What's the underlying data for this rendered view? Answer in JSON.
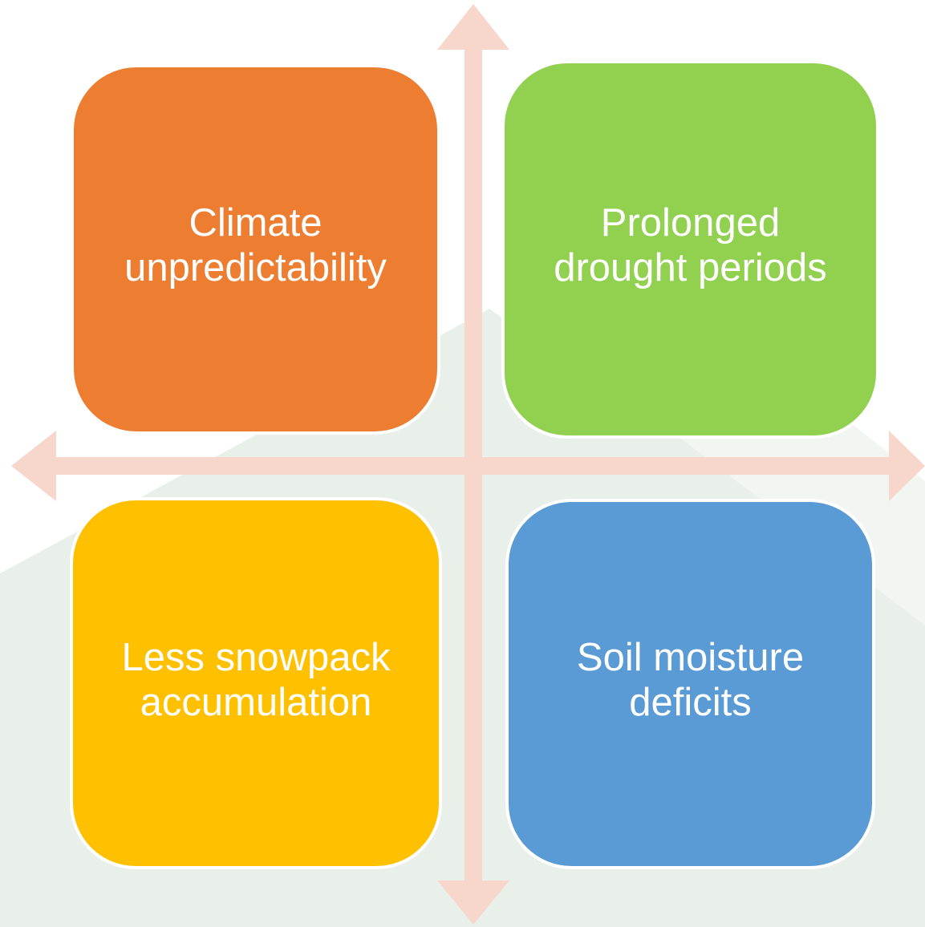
{
  "nodes": [
    {
      "lines": [
        "Climate",
        "unpredictability"
      ]
    },
    {
      "lines": [
        "Prolonged",
        "drought periods"
      ]
    },
    {
      "lines": [
        "Less snowpack",
        "accumulation"
      ]
    },
    {
      "lines": [
        "Soil moisture",
        "deficits"
      ]
    }
  ]
}
